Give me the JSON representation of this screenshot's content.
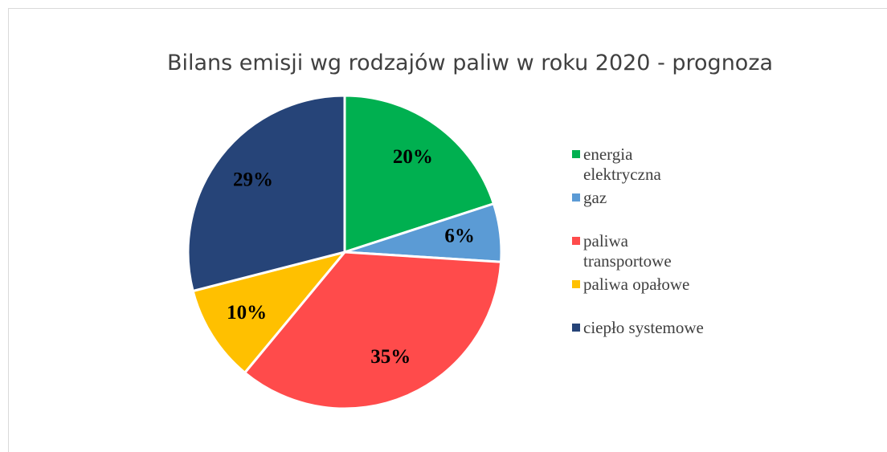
{
  "chart_data": {
    "type": "pie",
    "title": "Bilans emisji wg rodzajów paliw w roku 2020 - prognoza",
    "categories": [
      "energia elektryczna",
      "gaz",
      "paliwa transportowe",
      "paliwa opałowe",
      "ciepło systemowe"
    ],
    "values": [
      20,
      6,
      35,
      10,
      29
    ],
    "value_labels": [
      "20%",
      "6%",
      "35%",
      "10%",
      "29%"
    ],
    "colors": [
      "#00b050",
      "#5b9bd5",
      "#ff4b4b",
      "#ffc000",
      "#264478"
    ],
    "legend": "right"
  }
}
